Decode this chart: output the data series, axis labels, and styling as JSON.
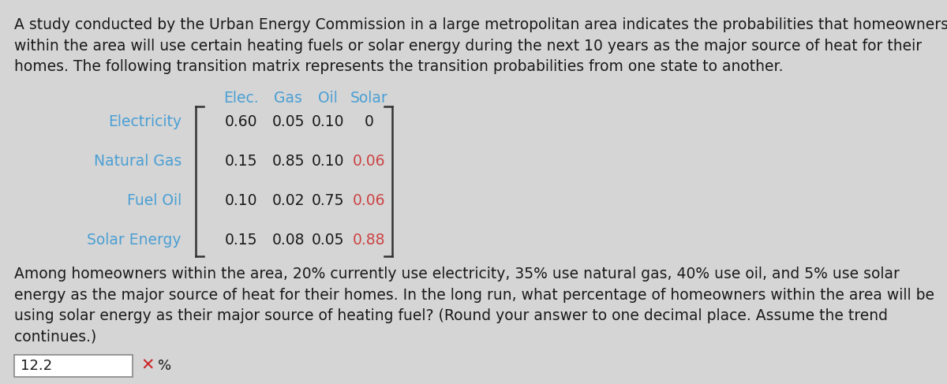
{
  "bg_color": "#d5d5d5",
  "top_paragraph": "A study conducted by the Urban Energy Commission in a large metropolitan area indicates the probabilities that homeowners\nwithin the area will use certain heating fuels or solar energy during the next 10 years as the major source of heat for their\nhomes. The following transition matrix represents the transition probabilities from one state to another.",
  "col_headers": [
    "Elec.",
    "Gas",
    "Oil",
    "Solar"
  ],
  "row_labels": [
    "Electricity",
    "Natural Gas",
    "Fuel Oil",
    "Solar Energy"
  ],
  "row_label_color": "#4a9fd4",
  "col_header_color": "#4a9fd4",
  "matrix": [
    [
      "0.60",
      "0.05",
      "0.10",
      "0"
    ],
    [
      "0.15",
      "0.85",
      "0.10",
      "0.06"
    ],
    [
      "0.10",
      "0.02",
      "0.75",
      "0.06"
    ],
    [
      "0.15",
      "0.08",
      "0.05",
      "0.88"
    ]
  ],
  "solar_col_color": "#cc4444",
  "bottom_paragraph": "Among homeowners within the area, 20% currently use electricity, 35% use natural gas, 40% use oil, and 5% use solar\nenergy as the major source of heat for their homes. In the long run, what percentage of homeowners within the area will be\nusing solar energy as their major source of heating fuel? (Round your answer to one decimal place. Assume the trend\ncontinues.)",
  "answer_value": "12.2",
  "answer_unit": "%",
  "x_color": "#cc2222",
  "text_color": "#1a1a1a",
  "font_size_paragraph": 11.5,
  "font_size_matrix": 12.0,
  "font_size_answer": 12.0
}
